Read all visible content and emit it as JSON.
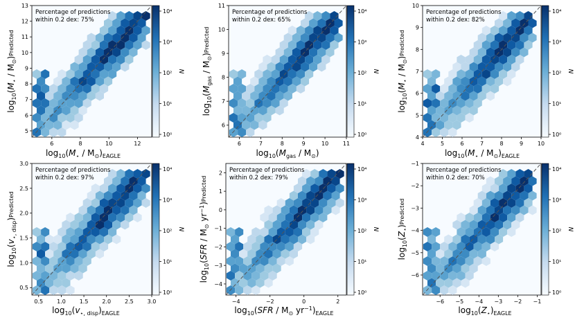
{
  "chart_data": [
    {
      "type": "hexbin",
      "panel": "stellar-mass",
      "annotation": [
        "Percentage of predictions",
        "within 0.2 dex: 75%"
      ],
      "xlabel": "log10(M⋆ / M⊙)",
      "xlabel_sub": "EAGLE",
      "ylabel": "log10(M⋆ / M⊙)",
      "ylabel_sub": "Predicted",
      "xlim": [
        4.6,
        13.0
      ],
      "ylim": [
        4.6,
        13.0
      ],
      "xticks": [
        6,
        8,
        10,
        12
      ],
      "yticks": [
        5,
        6,
        7,
        8,
        9,
        10,
        11,
        12,
        13
      ],
      "one_to_one_line": true,
      "colorbar": {
        "label": "N",
        "scale": "log",
        "ticks": [
          "10⁰",
          "10¹",
          "10²",
          "10³",
          "10⁴"
        ]
      }
    },
    {
      "type": "hexbin",
      "panel": "gas-mass",
      "annotation": [
        "Percentage of predictions",
        "within 0.2 dex: 65%"
      ],
      "xlabel": "log10(Mgas / M⊙)",
      "xlabel_sub": "",
      "ylabel": "log10(Mgas / M⊙)",
      "ylabel_sub": "Predicted",
      "xlim": [
        5.5,
        11.0
      ],
      "ylim": [
        5.5,
        11.0
      ],
      "xticks": [
        6,
        7,
        8,
        9,
        10,
        11
      ],
      "yticks": [
        6,
        7,
        8,
        9,
        10,
        11
      ],
      "one_to_one_line": true,
      "colorbar": {
        "label": "N",
        "scale": "log",
        "ticks": [
          "10⁰",
          "10¹",
          "10²",
          "10³",
          "10⁴"
        ]
      }
    },
    {
      "type": "hexbin",
      "panel": "stellar-mass-high-res",
      "annotation": [
        "Percentage of predictions",
        "within 0.2 dex: 82%"
      ],
      "xlabel": "log10(M⋆ / M⊙)",
      "xlabel_sub": "EAGLE",
      "ylabel": "log10(M⋆ / M⊙)",
      "ylabel_sub": "Predicted",
      "xlim": [
        4.0,
        10.0
      ],
      "ylim": [
        4.0,
        10.0
      ],
      "xticks": [
        4,
        5,
        6,
        7,
        8,
        9,
        10
      ],
      "yticks": [
        4,
        5,
        6,
        7,
        8,
        9,
        10
      ],
      "one_to_one_line": true,
      "colorbar": {
        "label": "N",
        "scale": "log",
        "ticks": [
          "10⁰",
          "10¹",
          "10²",
          "10³",
          "10⁴"
        ]
      }
    },
    {
      "type": "hexbin",
      "panel": "velocity-dispersion",
      "annotation": [
        "Percentage of predictions",
        "within 0.2 dex: 97%"
      ],
      "xlabel": "log10(v⋆,disp)",
      "xlabel_sub": "EAGLE",
      "ylabel": "log10(v⋆,disp)",
      "ylabel_sub": "Predicted",
      "xlim": [
        0.35,
        3.0
      ],
      "ylim": [
        0.35,
        3.0
      ],
      "xticks": [
        "0.5",
        "1.0",
        "1.5",
        "2.0",
        "2.5",
        "3.0"
      ],
      "yticks": [
        "0.5",
        "1.0",
        "1.5",
        "2.0",
        "2.5",
        "3.0"
      ],
      "one_to_one_line": true,
      "colorbar": {
        "label": "N",
        "scale": "log",
        "ticks": [
          "10⁰",
          "10¹",
          "10²",
          "10³",
          "10⁴"
        ]
      }
    },
    {
      "type": "hexbin",
      "panel": "star-formation-rate",
      "annotation": [
        "Percentage of predictions",
        "within 0.2 dex: 79%"
      ],
      "xlabel": "log10(SFR / M⊙ yr⁻¹)",
      "xlabel_sub": "EAGLE",
      "ylabel": "log10(SFR / M⊙ yr⁻¹)",
      "ylabel_sub": "Predicted",
      "xlim": [
        -4.6,
        2.5
      ],
      "ylim": [
        -4.6,
        2.5
      ],
      "xticks": [
        "−4",
        "−2",
        "0",
        "2"
      ],
      "yticks": [
        "−4",
        "−3",
        "−2",
        "−1",
        "0",
        "1",
        "2"
      ],
      "one_to_one_line": true,
      "colorbar": {
        "label": "N",
        "scale": "log",
        "ticks": [
          "10⁰",
          "10¹",
          "10²",
          "10³",
          "10⁴"
        ]
      }
    },
    {
      "type": "hexbin",
      "panel": "metallicity",
      "annotation": [
        "Percentage of predictions",
        "within 0.2 dex: 70%"
      ],
      "xlabel": "log10(Z⋆)",
      "xlabel_sub": "EAGLE",
      "ylabel": "log10(Z⋆)",
      "ylabel_sub": "Predicted",
      "xlim": [
        -6.9,
        -0.8
      ],
      "ylim": [
        -6.9,
        -1.0
      ],
      "xticks": [
        "−6",
        "−5",
        "−4",
        "−3",
        "−2",
        "−1"
      ],
      "yticks": [
        "−6",
        "−5",
        "−4",
        "−3",
        "−2",
        "−1"
      ],
      "one_to_one_line": true,
      "colorbar": {
        "label": "N",
        "scale": "log",
        "ticks": [
          "10⁰",
          "10¹",
          "10²",
          "10³",
          "10⁴"
        ]
      }
    }
  ]
}
